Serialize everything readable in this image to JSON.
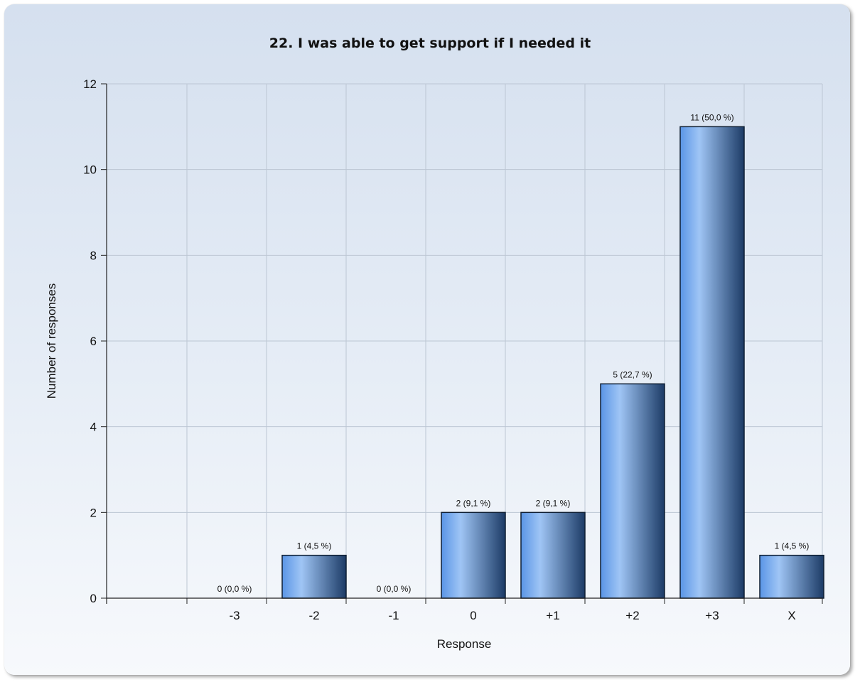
{
  "chart_data": {
    "type": "bar",
    "title": "22. I was able to get support if I needed it",
    "xlabel": "Response",
    "ylabel": "Number of responses",
    "categories": [
      "-3",
      "-2",
      "-1",
      "0",
      "+1",
      "+2",
      "+3",
      "X"
    ],
    "values": [
      0,
      1,
      0,
      2,
      2,
      5,
      11,
      1
    ],
    "data_labels": [
      "0 (0,0 %)",
      "1 (4,5 %)",
      "0 (0,0 %)",
      "2 (9,1 %)",
      "2 (9,1 %)",
      "5 (22,7 %)",
      "11 (50,0 %)",
      "1 (4,5 %)"
    ],
    "y_ticks": [
      "0",
      "2",
      "4",
      "6",
      "8",
      "10",
      "12"
    ],
    "ylim": [
      0,
      12
    ],
    "grid": true,
    "legend": "none",
    "colors": {
      "bar_light": "#9fc5f5",
      "bar_mid": "#5a95e6",
      "bar_dark": "#1c3b66"
    }
  }
}
